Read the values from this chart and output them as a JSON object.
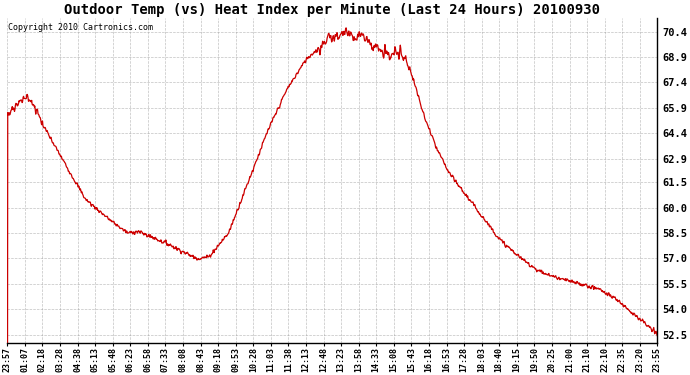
{
  "title": "Outdoor Temp (vs) Heat Index per Minute (Last 24 Hours) 20100930",
  "copyright": "Copyright 2010 Cartronics.com",
  "line_color": "#cc0000",
  "bg_color": "#ffffff",
  "plot_bg_color": "#ffffff",
  "grid_color": "#999999",
  "y_ticks": [
    52.5,
    54.0,
    55.5,
    57.0,
    58.5,
    60.0,
    61.5,
    62.9,
    64.4,
    65.9,
    67.4,
    68.9,
    70.4
  ],
  "ylim": [
    52.0,
    71.2
  ],
  "x_labels": [
    "23:57",
    "01:07",
    "02:18",
    "03:28",
    "04:38",
    "05:13",
    "05:48",
    "06:23",
    "06:58",
    "07:33",
    "08:08",
    "08:43",
    "09:18",
    "09:53",
    "10:28",
    "11:03",
    "11:38",
    "12:13",
    "12:48",
    "13:23",
    "13:58",
    "14:33",
    "15:08",
    "15:43",
    "16:18",
    "16:53",
    "17:28",
    "18:03",
    "18:40",
    "19:15",
    "19:50",
    "20:25",
    "21:00",
    "21:10",
    "22:10",
    "22:35",
    "23:20",
    "23:55"
  ],
  "curve_t": [
    0.0,
    0.015,
    0.03,
    0.045,
    0.06,
    0.09,
    0.12,
    0.16,
    0.185,
    0.2,
    0.22,
    0.25,
    0.285,
    0.295,
    0.31,
    0.34,
    0.37,
    0.4,
    0.43,
    0.46,
    0.49,
    0.51,
    0.525,
    0.535,
    0.545,
    0.555,
    0.565,
    0.575,
    0.59,
    0.605,
    0.615,
    0.625,
    0.64,
    0.66,
    0.68,
    0.7,
    0.73,
    0.76,
    0.79,
    0.82,
    0.85,
    0.88,
    0.91,
    0.94,
    0.97,
    1.0
  ],
  "curve_v": [
    65.5,
    66.2,
    66.5,
    65.8,
    64.5,
    62.5,
    60.5,
    59.2,
    58.5,
    58.6,
    58.3,
    57.8,
    57.1,
    57.0,
    57.1,
    58.5,
    61.5,
    64.5,
    67.0,
    68.8,
    69.8,
    70.2,
    70.4,
    70.1,
    70.3,
    69.8,
    69.5,
    69.2,
    69.0,
    69.2,
    68.5,
    67.5,
    65.5,
    63.5,
    62.0,
    61.0,
    59.5,
    58.0,
    57.0,
    56.2,
    55.8,
    55.5,
    55.2,
    54.5,
    53.5,
    52.5
  ]
}
